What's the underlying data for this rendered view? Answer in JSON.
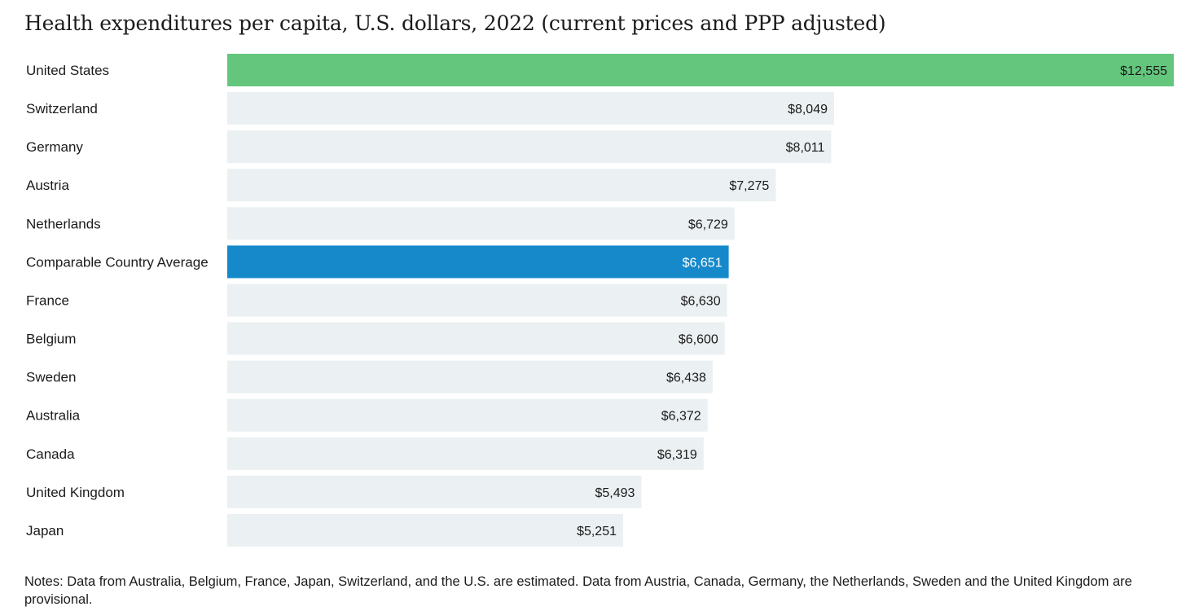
{
  "chart_data": {
    "type": "bar",
    "orientation": "horizontal",
    "title": "Health expenditures per capita, U.S. dollars, 2022 (current prices and PPP adjusted)",
    "categories": [
      "United States",
      "Switzerland",
      "Germany",
      "Austria",
      "Netherlands",
      "Comparable Country Average",
      "France",
      "Belgium",
      "Sweden",
      "Australia",
      "Canada",
      "United Kingdom",
      "Japan"
    ],
    "values": [
      12555,
      8049,
      8011,
      7275,
      6729,
      6651,
      6630,
      6600,
      6438,
      6372,
      6319,
      5493,
      5251
    ],
    "value_labels": [
      "$12,555",
      "$8,049",
      "$8,011",
      "$7,275",
      "$6,729",
      "$6,651",
      "$6,630",
      "$6,600",
      "$6,438",
      "$6,372",
      "$6,319",
      "$5,493",
      "$5,251"
    ],
    "highlight": {
      "United States": "#64c67d",
      "Comparable Country Average": "#1689cb"
    },
    "default_bar_color": "#ebf0f2",
    "xlim": [
      0,
      12555
    ],
    "grid": false,
    "legend": "none"
  },
  "notes": "Notes: Data from Australia, Belgium, France, Japan, Switzerland, and the U.S. are estimated. Data from Austria, Canada, Germany, the Netherlands, Sweden and the United Kingdom are provisional."
}
